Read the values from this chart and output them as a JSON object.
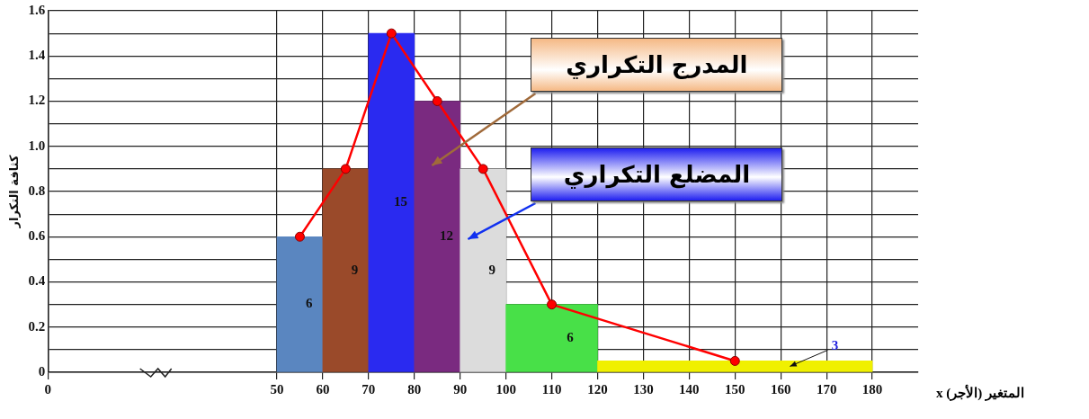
{
  "chart_data": {
    "type": "histogram",
    "xlabel": "المتغير (الأجر) x",
    "ylabel": "كثافة التكرار",
    "xlim": [
      0,
      190
    ],
    "xticks": [
      0,
      50,
      60,
      70,
      80,
      90,
      100,
      110,
      120,
      130,
      140,
      150,
      160,
      170,
      180
    ],
    "ylim": [
      0,
      1.6
    ],
    "yticks": [
      0,
      {
        "value": 0.1,
        "label": null
      },
      0.2,
      {
        "value": 0.3,
        "label": null
      },
      0.4,
      {
        "value": 0.5,
        "label": null
      },
      0.6,
      {
        "value": 0.7,
        "label": null
      },
      0.8,
      {
        "value": 0.9,
        "label": null
      },
      {
        "value": 1.0,
        "label": "1.0"
      },
      {
        "value": 1.1,
        "label": null
      },
      1.2,
      {
        "value": 1.3,
        "label": null
      },
      1.4,
      {
        "value": 1.5,
        "label": null
      },
      1.6
    ],
    "grid": true,
    "series": [
      {
        "bins": [
          50,
          60,
          70,
          80,
          90,
          100,
          120,
          180
        ],
        "values": [
          0.6,
          0.9,
          1.5,
          1.2,
          0.9,
          0.3,
          0.05
        ],
        "colors": [
          "#5a86c0",
          "#9a4a2a",
          "#2a2af0",
          "#7a2a80",
          "#dcdcdc",
          "#48e048",
          "#f0f000"
        ]
      },
      {
        "type": "line",
        "x": [
          55,
          65,
          75,
          85,
          95,
          110,
          150
        ],
        "values": [
          0.6,
          0.9,
          1.5,
          1.2,
          0.9,
          0.3,
          0.05
        ],
        "color": "#ff0000",
        "marker": "circle"
      }
    ],
    "annotations": [
      "المدرج التكراري",
      "المضلع التكراري",
      "6",
      "9",
      "15",
      "12",
      "9",
      "6",
      "3"
    ]
  }
}
